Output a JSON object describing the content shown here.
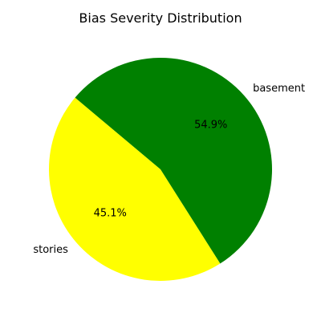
{
  "chart_data": {
    "type": "pie",
    "title": "Bias Severity Distribution",
    "slices": [
      {
        "label": "stories",
        "value": 45.1,
        "pct_label": "45.1%",
        "color": "#ffff00"
      },
      {
        "label": "basement",
        "value": 54.9,
        "pct_label": "54.9%",
        "color": "#008000"
      }
    ],
    "start_angle_deg": 140,
    "direction": "counterclockwise"
  }
}
